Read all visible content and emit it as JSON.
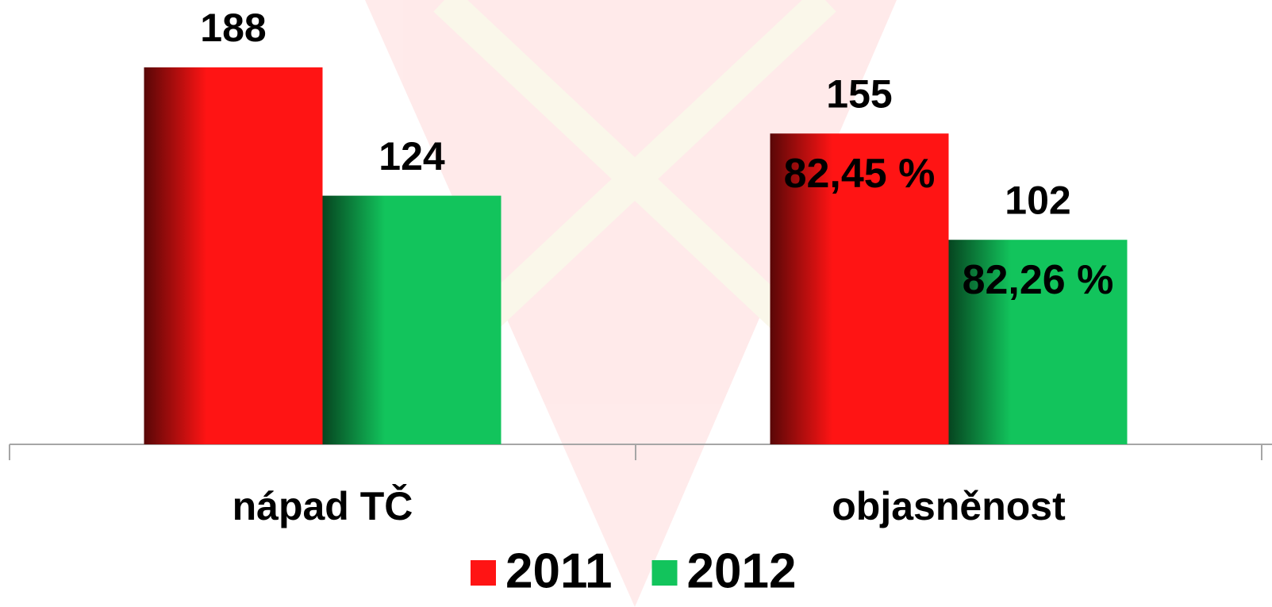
{
  "chart_data": {
    "type": "bar",
    "categories": [
      "nápad TČ",
      "objasněnost"
    ],
    "series": [
      {
        "name": "2011",
        "color": "#ff1414",
        "values": [
          188,
          155
        ]
      },
      {
        "name": "2012",
        "color": "#12c45c",
        "values": [
          124,
          102
        ]
      }
    ],
    "annotations": [
      "82,45 %",
      "82,26 %"
    ],
    "ylim": [
      0,
      220
    ],
    "grid": false,
    "legend": "bottom"
  }
}
